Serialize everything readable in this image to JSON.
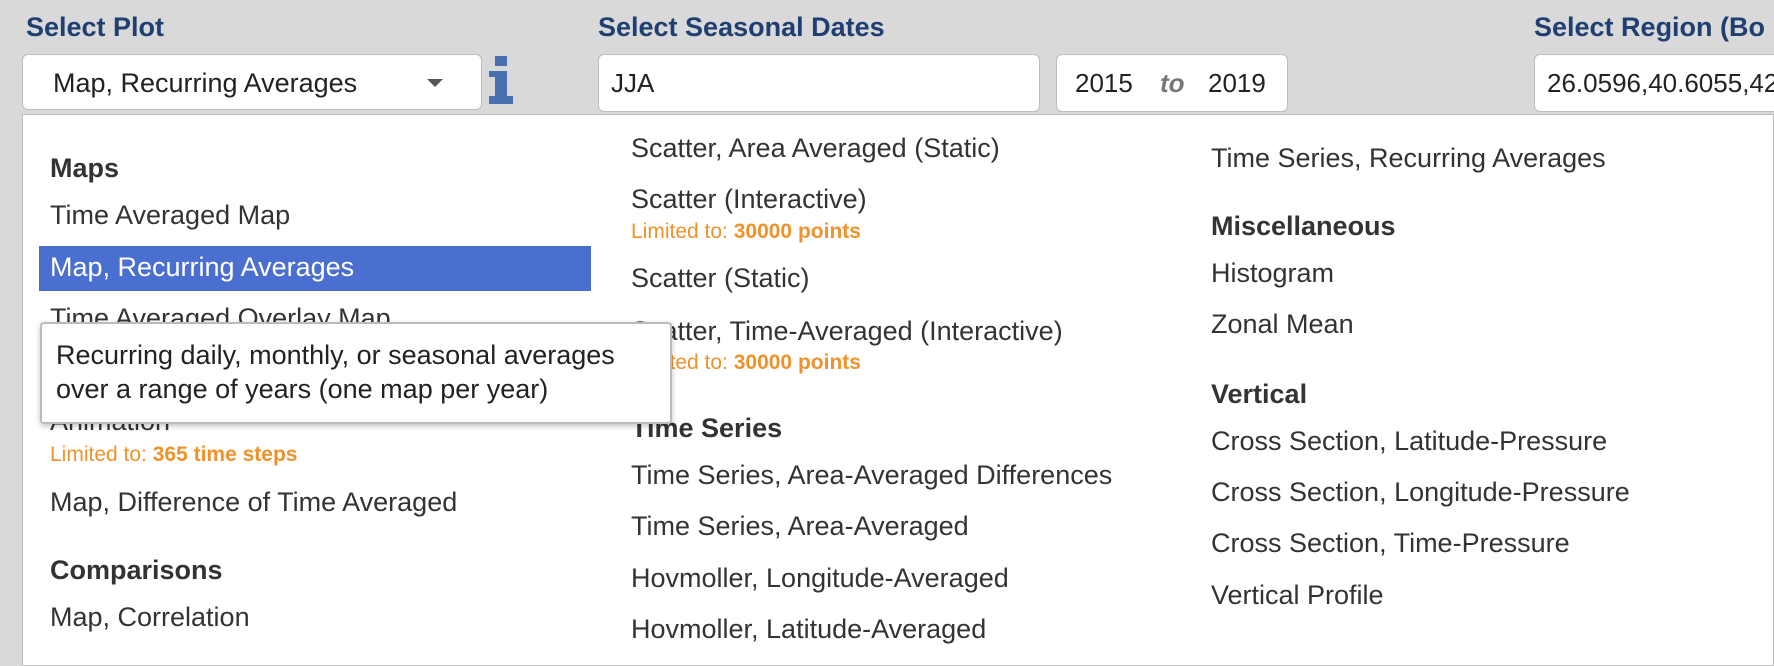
{
  "header": {
    "plot_label": "Select Plot",
    "seasonal_label": "Select Seasonal Dates",
    "region_label": "Select Region (Bo"
  },
  "plot_select": {
    "value": "Map, Recurring Averages"
  },
  "seasonal": {
    "season": "JJA",
    "year_start": "2015",
    "to": "to",
    "year_end": "2019"
  },
  "region": {
    "value": "26.0596,40.6055,42"
  },
  "icons": {
    "info": "info-icon",
    "caret": "chevron-down-icon"
  },
  "colors": {
    "label": "#1f3f72",
    "selected": "#4a6fd1",
    "limit": "#f0922b",
    "info": "#4a6fb0"
  },
  "dropdown": {
    "col1": {
      "maps_heading": "Maps",
      "time_averaged_map": "Time Averaged Map",
      "map_recurring": "Map, Recurring Averages",
      "time_averaged_overlay": "Time Averaged Overlay Map",
      "animation": "Animation",
      "animation_limit_prefix": "Limited to: ",
      "animation_limit_value": "365 time steps",
      "map_difference": "Map, Difference of Time Averaged",
      "comparisons_heading": "Comparisons",
      "map_correlation": "Map, Correlation"
    },
    "col2": {
      "scatter_area_static": "Scatter, Area Averaged (Static)",
      "scatter_interactive": "Scatter (Interactive)",
      "scatter_interactive_limit_prefix": "Limited to: ",
      "scatter_interactive_limit_value": "30000 points",
      "scatter_static": "Scatter (Static)",
      "scatter_time_averaged": "Scatter, Time-Averaged (Interactive)",
      "scatter_time_averaged_limit_prefix": "Limited to: ",
      "scatter_time_averaged_limit_value": "30000 points",
      "time_series_heading": "Time Series",
      "ts_area_diff": "Time Series, Area-Averaged Differences",
      "ts_area": "Time Series, Area-Averaged",
      "hov_lon": "Hovmoller, Longitude-Averaged",
      "hov_lat": "Hovmoller, Latitude-Averaged"
    },
    "col3": {
      "ts_recurring": "Time Series, Recurring Averages",
      "misc_heading": "Miscellaneous",
      "histogram": "Histogram",
      "zonal_mean": "Zonal Mean",
      "vertical_heading": "Vertical",
      "cs_lat_p": "Cross Section, Latitude-Pressure",
      "cs_lon_p": "Cross Section, Longitude-Pressure",
      "cs_time_p": "Cross Section, Time-Pressure",
      "vertical_profile": "Vertical Profile"
    }
  },
  "tooltip": {
    "line1": "Recurring daily, monthly, or seasonal averages",
    "line2": "over a range of years (one map per year)"
  }
}
